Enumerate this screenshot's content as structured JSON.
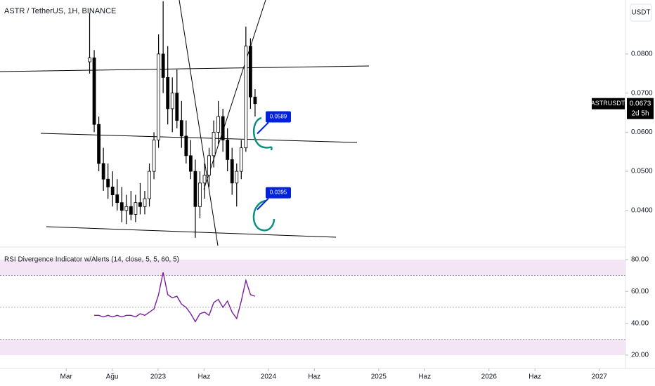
{
  "header": {
    "symbol_title": "ASTR / TetherUS, 1H, BINANCE",
    "currency": "USDT"
  },
  "chart_data": [
    {
      "type": "candlestick",
      "x": [
        4.55,
        5.05,
        5.55,
        6.05,
        6.55,
        7.05,
        7.55,
        8.05,
        8.55,
        9.05,
        9.55,
        10.05,
        10.55,
        11.05,
        11.55,
        12.05,
        12.55,
        13.05,
        13.55,
        14.05,
        14.55,
        15.05,
        15.55,
        16.05,
        16.55,
        17.05,
        17.55,
        18.05,
        18.55,
        19.05,
        19.55,
        20.05,
        20.55,
        21.05,
        21.55,
        22.05,
        22.55
      ],
      "open": [
        0.078,
        0.079,
        0.062,
        0.052,
        0.048,
        0.046,
        0.044,
        0.042,
        0.04,
        0.041,
        0.039,
        0.042,
        0.041,
        0.043,
        0.05,
        0.058,
        0.08,
        0.074,
        0.066,
        0.07,
        0.063,
        0.059,
        0.054,
        0.05,
        0.041,
        0.047,
        0.049,
        0.054,
        0.06,
        0.064,
        0.058,
        0.053,
        0.047,
        0.05,
        0.056,
        0.082,
        0.069
      ],
      "high": [
        0.0905,
        0.081,
        0.064,
        0.056,
        0.052,
        0.05,
        0.048,
        0.046,
        0.044,
        0.045,
        0.044,
        0.047,
        0.045,
        0.052,
        0.06,
        0.085,
        0.0935,
        0.082,
        0.074,
        0.076,
        0.068,
        0.063,
        0.058,
        0.053,
        0.05,
        0.052,
        0.056,
        0.063,
        0.068,
        0.066,
        0.061,
        0.056,
        0.052,
        0.058,
        0.087,
        0.084,
        0.071
      ],
      "low": [
        0.075,
        0.06,
        0.05,
        0.045,
        0.043,
        0.041,
        0.04,
        0.037,
        0.0365,
        0.0375,
        0.037,
        0.039,
        0.039,
        0.041,
        0.048,
        0.056,
        0.07,
        0.062,
        0.06,
        0.061,
        0.056,
        0.052,
        0.048,
        0.033,
        0.038,
        0.043,
        0.046,
        0.051,
        0.057,
        0.055,
        0.05,
        0.044,
        0.041,
        0.048,
        0.055,
        0.066,
        0.064
      ],
      "close": [
        0.079,
        0.062,
        0.052,
        0.048,
        0.046,
        0.044,
        0.042,
        0.04,
        0.041,
        0.039,
        0.042,
        0.041,
        0.043,
        0.05,
        0.058,
        0.08,
        0.074,
        0.066,
        0.07,
        0.063,
        0.059,
        0.054,
        0.05,
        0.041,
        0.047,
        0.049,
        0.054,
        0.06,
        0.064,
        0.058,
        0.053,
        0.047,
        0.05,
        0.056,
        0.082,
        0.069,
        0.0673
      ],
      "up_color": "#ffffff",
      "down_color": "#000000",
      "wick_color": "#000000",
      "xlim": [
        -5.2,
        62.85
      ],
      "ylim": [
        0.031,
        0.0938
      ],
      "yticks": [
        {
          "value": 0.04,
          "label": "0.0400"
        },
        {
          "value": 0.05,
          "label": "0.0500"
        },
        {
          "value": 0.06,
          "label": "0.0600"
        },
        {
          "value": 0.07,
          "label": "0.0700"
        },
        {
          "value": 0.08,
          "label": "0.0800"
        }
      ],
      "annotations": [
        {
          "value": 0.0589,
          "color": "#0022dd"
        },
        {
          "value": 0.0395,
          "color": "#0022dd"
        }
      ],
      "last_price": {
        "symbol": "ASTRUSDT",
        "value": 0.0673,
        "countdown": "2d 5h"
      }
    },
    {
      "type": "line",
      "title": "RSI Divergence Indicator w/Alerts (14, close, 5, 5, 60, 5)",
      "x": [
        4.55,
        5.05,
        5.55,
        6.05,
        6.55,
        7.05,
        7.55,
        8.05,
        8.55,
        9.05,
        9.55,
        10.05,
        10.55,
        11.05,
        11.55,
        12.05,
        12.55,
        13.05,
        13.55,
        14.05,
        14.55,
        15.05,
        15.55,
        16.05,
        16.55,
        17.05,
        17.55,
        18.05,
        18.55,
        19.05,
        19.55,
        20.05,
        20.55,
        21.05,
        21.55,
        22.05,
        22.55
      ],
      "series": [
        {
          "name": "RSI",
          "color": "#7b1fa2",
          "values": [
            null,
            45,
            45,
            44,
            45,
            44,
            45,
            44,
            45,
            45,
            44,
            46,
            45,
            47,
            49,
            58,
            72,
            58,
            56,
            57,
            52,
            50,
            46,
            41,
            46,
            47,
            45,
            53,
            55,
            50,
            54,
            47,
            43,
            54,
            67,
            58,
            57
          ]
        }
      ],
      "xlim": [
        -5.2,
        62.85
      ],
      "ylim": [
        11.6,
        86.6
      ],
      "yticks": [
        {
          "value": 20,
          "label": "20.00"
        },
        {
          "value": 40,
          "label": "40.00"
        },
        {
          "value": 60,
          "label": "60.00"
        },
        {
          "value": 80,
          "label": "80.00"
        }
      ],
      "levels": [
        70,
        50,
        30
      ],
      "bands": [
        [
          70,
          80
        ],
        [
          20,
          30
        ]
      ],
      "band_color": "#f3e5f5",
      "xticks": [
        {
          "value": 2,
          "label": "Mar"
        },
        {
          "value": 7,
          "label": "Ağu"
        },
        {
          "value": 12,
          "label": "2023"
        },
        {
          "value": 17,
          "label": "Haz"
        },
        {
          "value": 24,
          "label": "2024"
        },
        {
          "value": 29,
          "label": "Haz"
        },
        {
          "value": 36,
          "label": "2025"
        },
        {
          "value": 41,
          "label": "Haz"
        },
        {
          "value": 48,
          "label": "2026"
        },
        {
          "value": 53,
          "label": "Haz"
        },
        {
          "value": 60,
          "label": "2027"
        }
      ]
    }
  ]
}
